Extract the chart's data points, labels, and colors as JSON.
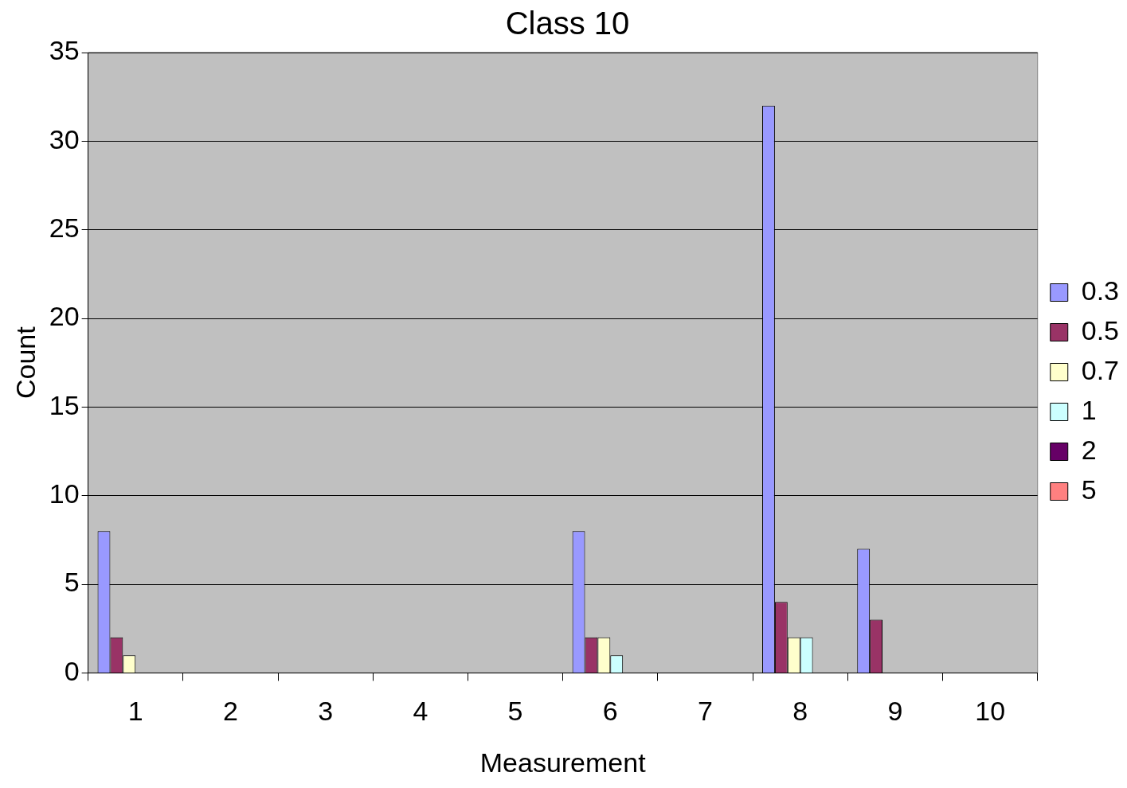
{
  "chart_data": {
    "type": "bar",
    "title": "Class 10",
    "xlabel": "Measurement",
    "ylabel": "Count",
    "categories": [
      "1",
      "2",
      "3",
      "4",
      "5",
      "6",
      "7",
      "8",
      "9",
      "10"
    ],
    "series": [
      {
        "name": "0.3",
        "color": "#9999ff",
        "values": [
          8,
          0,
          0,
          0,
          0,
          8,
          0,
          32,
          7,
          0
        ]
      },
      {
        "name": "0.5",
        "color": "#993366",
        "values": [
          2,
          0,
          0,
          0,
          0,
          2,
          0,
          4,
          3,
          0
        ]
      },
      {
        "name": "0.7",
        "color": "#ffffcc",
        "values": [
          1,
          0,
          0,
          0,
          0,
          2,
          0,
          2,
          0,
          0
        ]
      },
      {
        "name": "1",
        "color": "#ccffff",
        "values": [
          0,
          0,
          0,
          0,
          0,
          1,
          0,
          2,
          0,
          0
        ]
      },
      {
        "name": "2",
        "color": "#660066",
        "values": [
          0,
          0,
          0,
          0,
          0,
          0,
          0,
          0,
          0,
          0
        ]
      },
      {
        "name": "5",
        "color": "#ff8080",
        "values": [
          0,
          0,
          0,
          0,
          0,
          0,
          0,
          0,
          0,
          0
        ]
      }
    ],
    "ylim": [
      0,
      35
    ],
    "yticks": [
      0,
      5,
      10,
      15,
      20,
      25,
      30,
      35
    ],
    "grid": "y",
    "legend": "right"
  }
}
